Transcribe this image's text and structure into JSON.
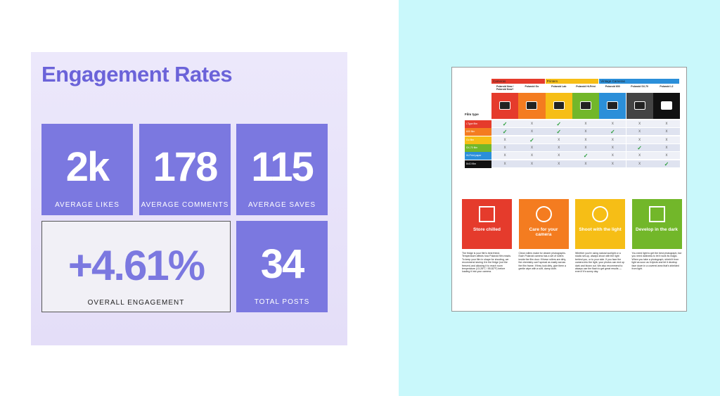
{
  "engagement": {
    "title": "Engagement Rates",
    "tiles": [
      {
        "value": "2k",
        "label": "AVERAGE LIKES"
      },
      {
        "value": "178",
        "label": "AVERAGE COMMENTS"
      },
      {
        "value": "115",
        "label": "AVERAGE SAVES"
      },
      {
        "value": "+4.61%",
        "label": "OVERALL ENGAGEMENT"
      },
      {
        "value": "34",
        "label": "TOTAL POSTS"
      }
    ]
  },
  "film_guide": {
    "groups": [
      "Cameras",
      "Printers",
      "Vintage Cameras"
    ],
    "columns": [
      "Polaroid Now / Polaroid Now+",
      "Polaroid Go",
      "Polaroid Lab",
      "Polaroid Hi-Print",
      "Polaroid 600",
      "Polaroid SX-70",
      "Polaroid I-2"
    ],
    "row_header": "Film type",
    "rows": [
      {
        "name": "i-Type film",
        "cells": [
          "✓",
          "x",
          "✓",
          "x",
          "x",
          "x",
          "x"
        ]
      },
      {
        "name": "600 film",
        "cells": [
          "✓",
          "x",
          "✓",
          "x",
          "✓",
          "x",
          "x"
        ]
      },
      {
        "name": "Go film",
        "cells": [
          "x",
          "✓",
          "x",
          "x",
          "x",
          "x",
          "x"
        ]
      },
      {
        "name": "SX-70 film",
        "cells": [
          "x",
          "x",
          "x",
          "x",
          "x",
          "✓",
          "x"
        ]
      },
      {
        "name": "Hi-Print paper",
        "cells": [
          "x",
          "x",
          "x",
          "✓",
          "x",
          "x",
          "x"
        ]
      },
      {
        "name": "8x10 film",
        "cells": [
          "x",
          "x",
          "x",
          "x",
          "x",
          "x",
          "✓"
        ]
      }
    ],
    "tips": [
      {
        "title": "Store chilled",
        "text": "The fridge is your film's best friend. Temperature affects how Polaroid film reacts. To keep your film in shape for shooting, we recommend storing it in the fridge (not the freezer) and allowing it to reach room temperature (13-28°C / 55-82°F) before loading it into your camera."
      },
      {
        "title": "Care for your camera",
        "text": "Clean rollers make for clearer photographs. Each Polaroid camera has a set of rollers inside the film door. If these rollers are dirty, the chemistry can't spread as easily across the film frame. If they look dirty, give them a gentle wipe with a soft, damp cloth."
      },
      {
        "title": "Shoot with the light",
        "text": "Whether you're using natural sunlight or a studio set-up, always shoot with the light behind you, or to your side. If you face the camera into the light, your photos can end up dark and blown out. We also recommend to always use the flash to get great results — even if it's sunny day."
      },
      {
        "title": "Develop in the dark",
        "text": "You need light to get the best photograph, but you need darkness to let it work its magic. When you take a photograph, shield it from light as soon as it ejects and let it develop face down in a covered area that's shielded from light."
      }
    ]
  }
}
